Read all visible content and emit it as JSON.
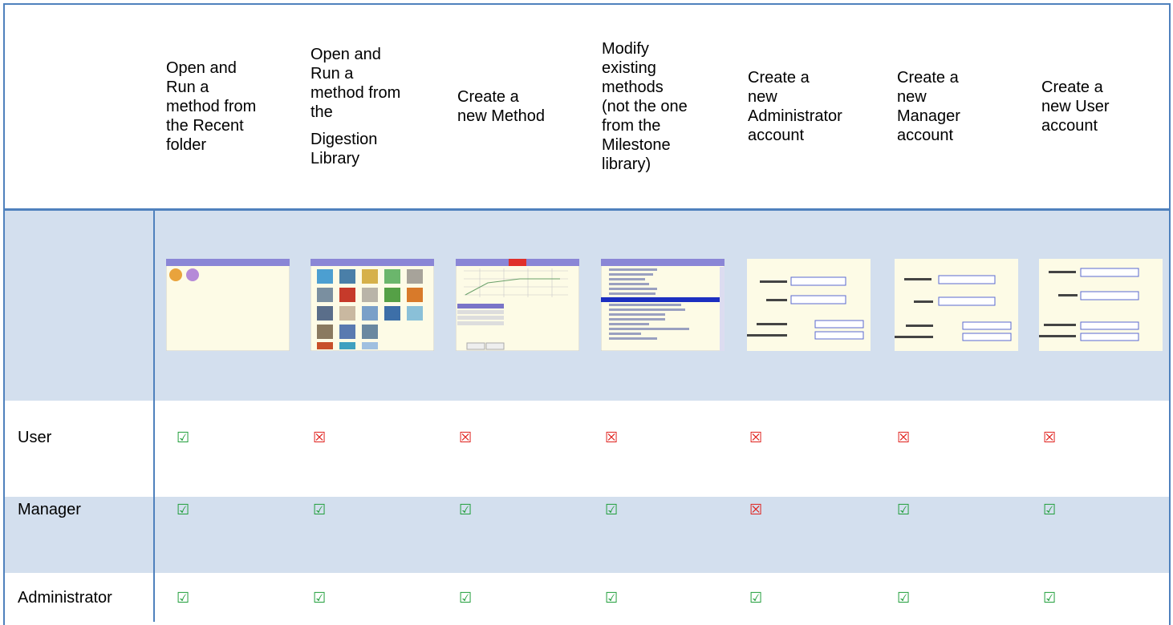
{
  "table": {
    "headers": [
      {
        "lines": [
          "Open and",
          "Run a",
          "method from",
          "the Recent",
          "folder"
        ]
      },
      {
        "lines": [
          "Open and",
          "Run a",
          "method from",
          "the",
          "Digestion",
          "Library"
        ]
      },
      {
        "lines": [
          "Create a",
          "new Method"
        ]
      },
      {
        "lines": [
          "Modify",
          "existing",
          "methods",
          "(not the one",
          "from the",
          "Milestone",
          "library)"
        ]
      },
      {
        "lines": [
          "Create a",
          "new",
          "Administrator",
          "account"
        ]
      },
      {
        "lines": [
          "Create a",
          "new",
          "Manager",
          "account"
        ]
      },
      {
        "lines": [
          "Create a",
          "new User",
          "account"
        ]
      }
    ],
    "rows": [
      {
        "label": "User",
        "cells": [
          {
            "symbol": "☑",
            "color": "#1f9e3a"
          },
          {
            "symbol": "☒",
            "color": "#e0201c"
          },
          {
            "symbol": "☒",
            "color": "#e0201c"
          },
          {
            "symbol": "☒",
            "color": "#e0201c"
          },
          {
            "symbol": "☒",
            "color": "#e0201c"
          },
          {
            "symbol": "☒",
            "color": "#e0201c"
          },
          {
            "symbol": "☒",
            "color": "#e0201c"
          }
        ]
      },
      {
        "label": "Manager",
        "cells": [
          {
            "symbol": "☑",
            "color": "#1f9e3a"
          },
          {
            "symbol": "☑",
            "color": "#1f9e3a"
          },
          {
            "symbol": "☑",
            "color": "#1f9e3a"
          },
          {
            "symbol": "☑",
            "color": "#1f9e3a"
          },
          {
            "symbol": "☒",
            "color": "#e0201c"
          },
          {
            "symbol": "☑",
            "color": "#1f9e3a"
          },
          {
            "symbol": "☑",
            "color": "#1f9e3a"
          }
        ]
      },
      {
        "label": "Administrator",
        "cells": [
          {
            "symbol": "☑",
            "color": "#1f9e3a"
          },
          {
            "symbol": "☑",
            "color": "#1f9e3a"
          },
          {
            "symbol": "☑",
            "color": "#1f9e3a"
          },
          {
            "symbol": "☑",
            "color": "#1f9e3a"
          },
          {
            "symbol": "☑",
            "color": "#1f9e3a"
          },
          {
            "symbol": "☑",
            "color": "#1f9e3a"
          },
          {
            "symbol": "☑",
            "color": "#1f9e3a"
          }
        ]
      }
    ]
  }
}
